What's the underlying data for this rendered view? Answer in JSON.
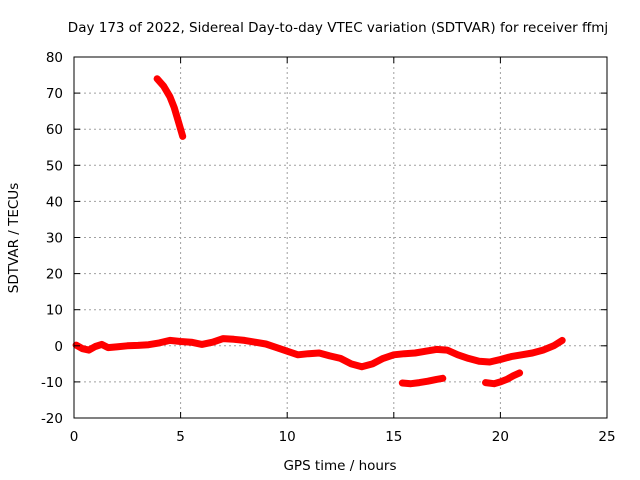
{
  "chart_data": {
    "type": "scatter",
    "title": "Day 173 of 2022, Sidereal Day-to-day VTEC variation (SDTVAR) for receiver ffmj",
    "xlabel": "GPS time / hours",
    "ylabel": "SDTVAR / TECUs",
    "xlim": [
      0,
      25
    ],
    "ylim": [
      -20,
      80
    ],
    "xticks": [
      0,
      5,
      10,
      15,
      20,
      25
    ],
    "yticks": [
      -20,
      -10,
      0,
      10,
      20,
      30,
      40,
      50,
      60,
      70,
      80
    ],
    "grid": true,
    "color": "#ff0000",
    "series": [
      {
        "name": "main",
        "x": [
          0.1,
          0.4,
          0.7,
          1.0,
          1.3,
          1.6,
          2.0,
          2.5,
          3.0,
          3.5,
          4.0,
          4.5,
          5.0,
          5.5,
          6.0,
          6.5,
          7.0,
          7.5,
          8.0,
          8.5,
          9.0,
          9.5,
          10.0,
          10.5,
          11.0,
          11.5,
          12.0,
          12.5,
          13.0,
          13.5,
          14.0,
          14.5,
          15.0,
          15.5,
          16.0,
          16.5,
          17.0,
          17.5,
          18.0,
          18.5,
          19.0,
          19.5,
          20.0,
          20.5,
          21.0,
          21.5,
          22.0,
          22.5,
          22.9
        ],
        "y": [
          0.2,
          -0.8,
          -1.2,
          -0.2,
          0.4,
          -0.5,
          -0.3,
          0.0,
          0.1,
          0.3,
          0.8,
          1.5,
          1.2,
          1.0,
          0.4,
          1.0,
          2.0,
          1.8,
          1.5,
          1.0,
          0.5,
          -0.5,
          -1.5,
          -2.5,
          -2.2,
          -2.0,
          -2.8,
          -3.5,
          -5.0,
          -5.8,
          -5.0,
          -3.5,
          -2.5,
          -2.2,
          -2.0,
          -1.5,
          -1.0,
          -1.2,
          -2.5,
          -3.5,
          -4.3,
          -4.5,
          -3.8,
          -3.0,
          -2.5,
          -2.0,
          -1.2,
          0.0,
          1.5
        ]
      },
      {
        "name": "spike",
        "x": [
          3.9,
          4.2,
          4.5,
          4.7,
          4.9,
          5.1
        ],
        "y": [
          74.0,
          72.0,
          69.0,
          66.0,
          62.0,
          58.0
        ]
      },
      {
        "name": "dip-1",
        "x": [
          15.4,
          15.8,
          16.2,
          16.6,
          17.0,
          17.3
        ],
        "y": [
          -10.3,
          -10.5,
          -10.2,
          -9.8,
          -9.3,
          -9.0
        ]
      },
      {
        "name": "dip-2",
        "x": [
          19.3,
          19.7,
          20.0,
          20.3,
          20.6,
          20.9
        ],
        "y": [
          -10.2,
          -10.5,
          -10.0,
          -9.3,
          -8.3,
          -7.5
        ]
      }
    ]
  }
}
